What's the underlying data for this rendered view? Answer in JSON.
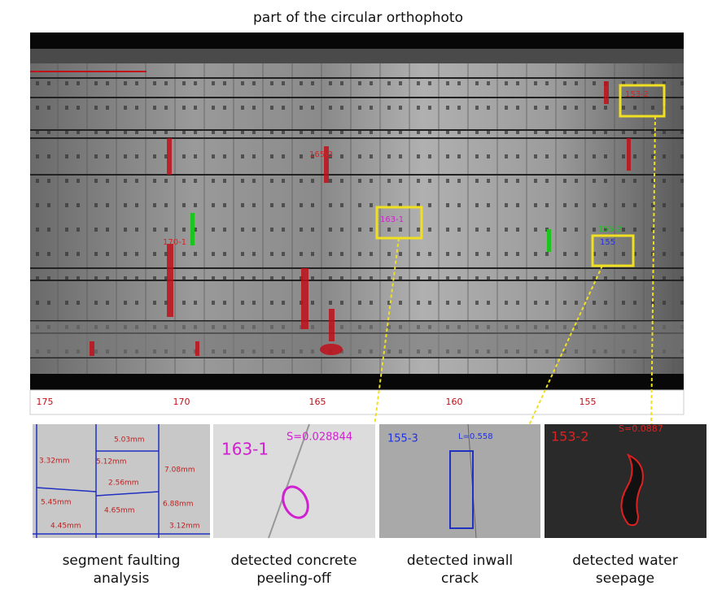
{
  "title": "part of the circular orthophoto",
  "orthophoto": {
    "labels": [
      "170-1",
      "163-1",
      "155",
      "165-3",
      "155-2",
      "153-2"
    ],
    "ring_numbers": [
      "175",
      "170",
      "165",
      "160",
      "155"
    ]
  },
  "insets": [
    {
      "caption": [
        "segment faulting",
        "analysis"
      ],
      "labels": [
        "3.32mm",
        "5.03mm",
        "5.12mm",
        "7.08mm",
        "2.56mm",
        "5.45mm",
        "4.65mm",
        "6.88mm",
        "4.45mm",
        "3.12mm"
      ]
    },
    {
      "caption": [
        "detected concrete",
        "peeling-off"
      ],
      "labels": [
        "163-1",
        "S=0.028844"
      ]
    },
    {
      "caption": [
        "detected inwall",
        "crack"
      ],
      "labels": [
        "155-3",
        "L=0.558"
      ]
    },
    {
      "caption": [
        "detected water",
        "seepage"
      ],
      "labels": [
        "153-2",
        "S=0.0887"
      ]
    }
  ]
}
